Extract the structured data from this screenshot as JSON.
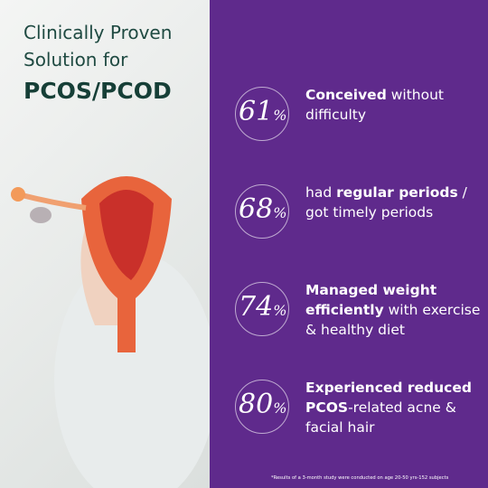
{
  "header": {
    "title": [
      "Clinically Proven",
      "Solution for",
      "PCOS/PCOD"
    ]
  },
  "stats": [
    {
      "number": "61",
      "unit": "%",
      "text": [
        {
          "text": "Conceived",
          "bold": true
        },
        {
          "text": " without difficulty",
          "bold": false
        }
      ]
    },
    {
      "number": "68",
      "unit": "%",
      "text": [
        {
          "text": "had ",
          "bold": false
        },
        {
          "text": "regular periods",
          "bold": true
        },
        {
          "text": " / got timely periods",
          "bold": false
        }
      ]
    },
    {
      "number": "74",
      "unit": "%",
      "text": [
        {
          "text": "Managed weight efficiently",
          "bold": true
        },
        {
          "text": " with exercise & healthy diet",
          "bold": false
        }
      ]
    },
    {
      "number": "80",
      "unit": "%",
      "text": [
        {
          "text": "Experienced reduced PCOS",
          "bold": true
        },
        {
          "text": "-related acne & facial hair",
          "bold": false
        }
      ]
    }
  ],
  "footnote": "*Results of a 3-month study were conducted on age 20-50 yrs-152 subjects"
}
